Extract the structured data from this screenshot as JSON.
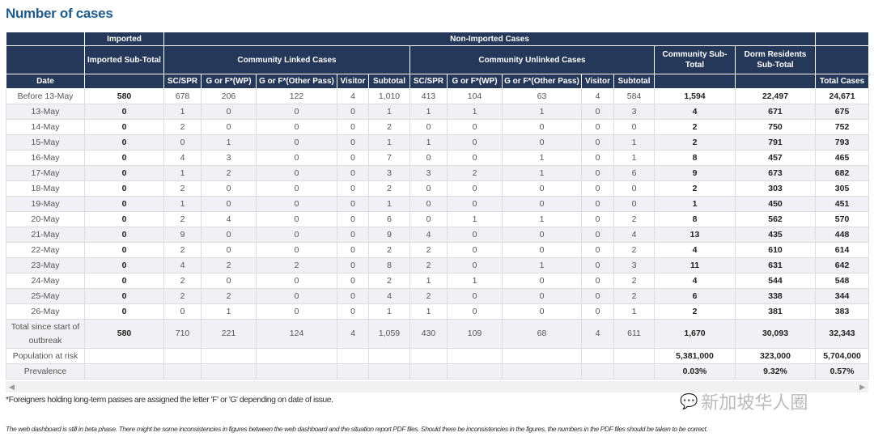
{
  "title": "Number of cases",
  "headers": {
    "imported": "Imported",
    "non_imported": "Non-Imported Cases",
    "imported_subtotal": "Imported Sub-Total",
    "community_linked": "Community Linked Cases",
    "community_unlinked": "Community Unlinked Cases",
    "community_subtotal": "Community Sub-Total",
    "dorm_subtotal": "Dorm Residents Sub-Total",
    "date": "Date",
    "total_cases": "Total Cases",
    "sub_columns": [
      "SC/SPR",
      "G or F*(WP)",
      "G or F*(Other Pass)",
      "Visitor",
      "Subtotal",
      "SC/SPR",
      "G or F*(WP)",
      "G or F*(Other Pass)",
      "Visitor",
      "Subtotal"
    ]
  },
  "rows": [
    [
      "Before 13-May",
      "580",
      "678",
      "206",
      "122",
      "4",
      "1,010",
      "413",
      "104",
      "63",
      "4",
      "584",
      "1,594",
      "22,497",
      "24,671"
    ],
    [
      "13-May",
      "0",
      "1",
      "0",
      "0",
      "0",
      "1",
      "1",
      "1",
      "1",
      "0",
      "3",
      "4",
      "671",
      "675"
    ],
    [
      "14-May",
      "0",
      "2",
      "0",
      "0",
      "0",
      "2",
      "0",
      "0",
      "0",
      "0",
      "0",
      "2",
      "750",
      "752"
    ],
    [
      "15-May",
      "0",
      "0",
      "1",
      "0",
      "0",
      "1",
      "1",
      "0",
      "0",
      "0",
      "1",
      "2",
      "791",
      "793"
    ],
    [
      "16-May",
      "0",
      "4",
      "3",
      "0",
      "0",
      "7",
      "0",
      "0",
      "1",
      "0",
      "1",
      "8",
      "457",
      "465"
    ],
    [
      "17-May",
      "0",
      "1",
      "2",
      "0",
      "0",
      "3",
      "3",
      "2",
      "1",
      "0",
      "6",
      "9",
      "673",
      "682"
    ],
    [
      "18-May",
      "0",
      "2",
      "0",
      "0",
      "0",
      "2",
      "0",
      "0",
      "0",
      "0",
      "0",
      "2",
      "303",
      "305"
    ],
    [
      "19-May",
      "0",
      "1",
      "0",
      "0",
      "0",
      "1",
      "0",
      "0",
      "0",
      "0",
      "0",
      "1",
      "450",
      "451"
    ],
    [
      "20-May",
      "0",
      "2",
      "4",
      "0",
      "0",
      "6",
      "0",
      "1",
      "1",
      "0",
      "2",
      "8",
      "562",
      "570"
    ],
    [
      "21-May",
      "0",
      "9",
      "0",
      "0",
      "0",
      "9",
      "4",
      "0",
      "0",
      "0",
      "4",
      "13",
      "435",
      "448"
    ],
    [
      "22-May",
      "0",
      "2",
      "0",
      "0",
      "0",
      "2",
      "2",
      "0",
      "0",
      "0",
      "2",
      "4",
      "610",
      "614"
    ],
    [
      "23-May",
      "0",
      "4",
      "2",
      "2",
      "0",
      "8",
      "2",
      "0",
      "1",
      "0",
      "3",
      "11",
      "631",
      "642"
    ],
    [
      "24-May",
      "0",
      "2",
      "0",
      "0",
      "0",
      "2",
      "1",
      "1",
      "0",
      "0",
      "2",
      "4",
      "544",
      "548"
    ],
    [
      "25-May",
      "0",
      "2",
      "2",
      "0",
      "0",
      "4",
      "2",
      "0",
      "0",
      "0",
      "2",
      "6",
      "338",
      "344"
    ],
    [
      "26-May",
      "0",
      "0",
      "1",
      "0",
      "0",
      "1",
      "1",
      "0",
      "0",
      "0",
      "1",
      "2",
      "381",
      "383"
    ],
    [
      "Total since start of outbreak",
      "580",
      "710",
      "221",
      "124",
      "4",
      "1,059",
      "430",
      "109",
      "68",
      "4",
      "611",
      "1,670",
      "30,093",
      "32,343"
    ],
    [
      "Population at risk",
      "",
      "",
      "",
      "",
      "",
      "",
      "",
      "",
      "",
      "",
      "",
      "5,381,000",
      "323,000",
      "5,704,000"
    ],
    [
      "Prevalence",
      "",
      "",
      "",
      "",
      "",
      "",
      "",
      "",
      "",
      "",
      "",
      "0.03%",
      "9.32%",
      "0.57%"
    ]
  ],
  "footnote": "*Foreigners holding long-term passes are assigned the letter 'F' or 'G' depending on date of issue.",
  "disclaimer": "The web dashboard is still in beta phase. There might be some inconsistencies in figures between the web dashboard and the situation report PDF files. Should there be inconsistencies in the figures, the numbers in the PDF files should be taken to be correct.",
  "watermark": "新加坡华人圈",
  "colors": {
    "header_bg": "#263859",
    "title": "#1f5c8a",
    "row_alt": "#f1f1f5"
  }
}
